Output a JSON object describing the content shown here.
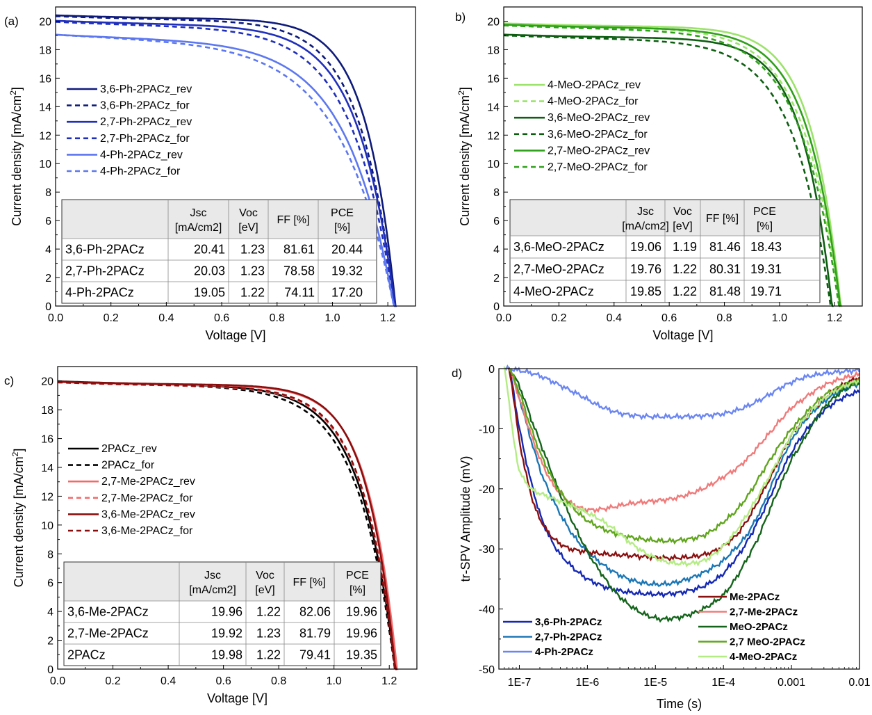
{
  "chart_data": [
    {
      "panel": "(a)",
      "type": "line",
      "xlabel": "Voltage [V]",
      "ylabel": "Current density [mA/cm²]",
      "xlim": [
        0,
        1.3
      ],
      "ylim": [
        0,
        21
      ],
      "xticks": [
        "0.0",
        "0.2",
        "0.4",
        "0.6",
        "0.8",
        "1.0",
        "1.2"
      ],
      "yticks": [
        "0",
        "2",
        "4",
        "6",
        "8",
        "10",
        "12",
        "14",
        "16",
        "18",
        "20"
      ],
      "legend_position": "middle-left",
      "series": [
        {
          "name": "3,6-Ph-2PACz_rev",
          "color": "#0d1a7a",
          "dash": false,
          "jsc": 20.41,
          "voc": 1.228,
          "ff": 81.61
        },
        {
          "name": "3,6-Ph-2PACz_for",
          "color": "#0d1a7a",
          "dash": true,
          "jsc": 20.35,
          "voc": 1.225,
          "ff": 79.5
        },
        {
          "name": "2,7-Ph-2PACz_rev",
          "color": "#1f2fbb",
          "dash": false,
          "jsc": 20.03,
          "voc": 1.226,
          "ff": 78.58
        },
        {
          "name": "2,7-Ph-2PACz_for",
          "color": "#1f2fbb",
          "dash": true,
          "jsc": 19.95,
          "voc": 1.224,
          "ff": 76.5
        },
        {
          "name": "4-Ph-2PACz_rev",
          "color": "#5c77f0",
          "dash": false,
          "jsc": 19.05,
          "voc": 1.222,
          "ff": 74.11
        },
        {
          "name": "4-Ph-2PACz_for",
          "color": "#5c77f0",
          "dash": true,
          "jsc": 19.05,
          "voc": 1.222,
          "ff": 71.5
        }
      ],
      "table": {
        "headers": [
          "",
          "Jsc\n[mA/cm2]",
          "Voc\n[eV]",
          "FF [%]",
          "PCE\n[%]"
        ],
        "rows": [
          [
            "3,6-Ph-2PACz",
            "20.41",
            "1.23",
            "81.61",
            "20.44"
          ],
          [
            "2,7-Ph-2PACz",
            "20.03",
            "1.23",
            "78.58",
            "19.32"
          ],
          [
            "4-Ph-2PACz",
            "19.05",
            "1.22",
            "74.11",
            "17.20"
          ]
        ]
      }
    },
    {
      "panel": "b)",
      "type": "line",
      "xlabel": "Voltage [V]",
      "ylabel": "Current density [mA/cm²]",
      "xlim": [
        0,
        1.3
      ],
      "ylim": [
        0,
        21
      ],
      "xticks": [
        "0.0",
        "0.2",
        "0.4",
        "0.6",
        "0.8",
        "1.0",
        "1.2"
      ],
      "yticks": [
        "0",
        "2",
        "4",
        "6",
        "8",
        "10",
        "12",
        "14",
        "16",
        "18",
        "20"
      ],
      "legend_position": "middle-left",
      "series": [
        {
          "name": "4-MeO-2PACz_rev",
          "color": "#9be36a",
          "dash": false,
          "jsc": 19.85,
          "voc": 1.222,
          "ff": 81.48
        },
        {
          "name": "4-MeO-2PACz_for",
          "color": "#9be36a",
          "dash": true,
          "jsc": 19.8,
          "voc": 1.218,
          "ff": 79.0
        },
        {
          "name": "3,6-MeO-2PACz_rev",
          "color": "#0e5e12",
          "dash": false,
          "jsc": 19.06,
          "voc": 1.19,
          "ff": 81.46
        },
        {
          "name": "3,6-MeO-2PACz_for",
          "color": "#0e5e12",
          "dash": true,
          "jsc": 19.0,
          "voc": 1.185,
          "ff": 78.5
        },
        {
          "name": "2,7-MeO-2PACz_rev",
          "color": "#2fa01a",
          "dash": false,
          "jsc": 19.76,
          "voc": 1.22,
          "ff": 80.31
        },
        {
          "name": "2,7-MeO-2PACz_for",
          "color": "#2fa01a",
          "dash": true,
          "jsc": 19.7,
          "voc": 1.215,
          "ff": 78.0
        }
      ],
      "table": {
        "headers": [
          "",
          "Jsc\n[mA/cm2]",
          "Voc\n[eV]",
          "FF [%]",
          "PCE\n[%]"
        ],
        "rows": [
          [
            "3,6-MeO-2PACz",
            "19.06",
            "1.19",
            "81.46",
            "18.43"
          ],
          [
            "2,7-MeO-2PACz",
            "19.76",
            "1.22",
            "80.31",
            "19.31"
          ],
          [
            "4-MeO-2PACz",
            "19.85",
            "1.22",
            "81.48",
            "19.71"
          ]
        ]
      }
    },
    {
      "panel": "c)",
      "type": "line",
      "xlabel": "Voltage [V]",
      "ylabel": "Current density [mA/cm²]",
      "xlim": [
        0,
        1.3
      ],
      "ylim": [
        0,
        21
      ],
      "xticks": [
        "0.0",
        "0.2",
        "0.4",
        "0.6",
        "0.8",
        "1.0",
        "1.2"
      ],
      "yticks": [
        "0",
        "2",
        "4",
        "6",
        "8",
        "10",
        "12",
        "14",
        "16",
        "18",
        "20"
      ],
      "legend_position": "middle-left",
      "series": [
        {
          "name": "2PACz_rev",
          "color": "#000000",
          "dash": false,
          "jsc": 19.98,
          "voc": 1.222,
          "ff": 79.41
        },
        {
          "name": "2PACz_for",
          "color": "#000000",
          "dash": true,
          "jsc": 19.95,
          "voc": 1.22,
          "ff": 78.5
        },
        {
          "name": "2,7-Me-2PACz_rev",
          "color": "#f26b6b",
          "dash": false,
          "jsc": 19.92,
          "voc": 1.228,
          "ff": 81.79
        },
        {
          "name": "2,7-Me-2PACz_for",
          "color": "#f26b6b",
          "dash": true,
          "jsc": 19.9,
          "voc": 1.225,
          "ff": 80.0
        },
        {
          "name": "3,6-Me-2PACz_rev",
          "color": "#8b0d0d",
          "dash": false,
          "jsc": 19.96,
          "voc": 1.222,
          "ff": 82.06
        },
        {
          "name": "3,6-Me-2PACz_for",
          "color": "#8b0d0d",
          "dash": true,
          "jsc": 19.9,
          "voc": 1.22,
          "ff": 80.5
        }
      ],
      "table": {
        "headers": [
          "",
          "Jsc\n[mA/cm2]",
          "Voc\n[eV]",
          "FF [%]",
          "PCE\n[%]"
        ],
        "rows": [
          [
            "3,6-Me-2PACz",
            "19.96",
            "1.22",
            "82.06",
            "19.96"
          ],
          [
            "2,7-Me-2PACz",
            "19.92",
            "1.23",
            "81.79",
            "19.96"
          ],
          [
            "2PACz",
            "19.98",
            "1.22",
            "79.41",
            "19.35"
          ]
        ]
      }
    },
    {
      "panel": "d)",
      "type": "line",
      "xscale": "log",
      "xlabel": "Time (s)",
      "ylabel": "tr-SPV Amplitude (mV)",
      "xlim": [
        5e-08,
        0.01
      ],
      "ylim": [
        -50,
        0
      ],
      "xticks": [
        {
          "v": 1e-07,
          "label": "1E-7"
        },
        {
          "v": 1e-06,
          "label": "1E-6"
        },
        {
          "v": 1e-05,
          "label": "1E-5"
        },
        {
          "v": 0.0001,
          "label": "1E-4"
        },
        {
          "v": 0.001,
          "label": "0.001"
        },
        {
          "v": 0.01,
          "label": "0.01"
        }
      ],
      "yticks": [
        0,
        -10,
        -20,
        -30,
        -40,
        -50
      ],
      "legend_position": "bottom-left and bottom-right",
      "series": [
        {
          "name": "3,6-Ph-2PACz",
          "color": "#1428b4",
          "x": [
            7e-08,
            1e-07,
            1.5e-07,
            2.2e-07,
            3.5e-07,
            6e-07,
            1e-06,
            2e-06,
            4e-06,
            8e-06,
            1.5e-05,
            3e-05,
            6e-05,
            0.00012,
            0.0003,
            0.001,
            0.003,
            0.01
          ],
          "y": [
            0,
            -10,
            -19,
            -25.5,
            -30,
            -33,
            -35,
            -36.5,
            -37.2,
            -37.5,
            -37.5,
            -37,
            -35.8,
            -33,
            -26,
            -14,
            -7,
            -3.8
          ]
        },
        {
          "name": "2,7-Ph-2PACz",
          "color": "#1b77b5",
          "x": [
            7e-08,
            1e-07,
            1.5e-07,
            2.2e-07,
            3.5e-07,
            6e-07,
            1e-06,
            2e-06,
            4e-06,
            8e-06,
            1.5e-05,
            3e-05,
            6e-05,
            0.00012,
            0.0003,
            0.001,
            0.003,
            0.01
          ],
          "y": [
            0,
            -5,
            -12,
            -18,
            -23,
            -27.5,
            -30.5,
            -33.2,
            -35,
            -35.8,
            -35.8,
            -35,
            -33.5,
            -31,
            -25,
            -12,
            -5.5,
            -2.5
          ]
        },
        {
          "name": "4-Ph-2PACz",
          "color": "#6b86f2",
          "x": [
            6e-08,
            1e-07,
            2e-07,
            4e-07,
            8e-07,
            1.5e-06,
            3e-06,
            6e-06,
            1.5e-05,
            4e-05,
            0.0001,
            0.0002,
            0.0004,
            0.0008,
            0.0015,
            0.003,
            0.01
          ],
          "y": [
            0,
            -0.3,
            -1.2,
            -2.8,
            -4.5,
            -6.2,
            -7.4,
            -7.9,
            -8,
            -7.9,
            -7.5,
            -6.5,
            -4.8,
            -2.8,
            -1.5,
            -0.8,
            -0.3
          ]
        },
        {
          "name": "Me-2PACz",
          "color": "#8b1010",
          "x": [
            7e-08,
            1e-07,
            1.5e-07,
            2e-07,
            3e-07,
            5e-07,
            1e-06,
            2e-06,
            4e-06,
            1e-05,
            2e-05,
            5e-05,
            0.0001,
            0.0002,
            0.0005,
            0.001,
            0.003,
            0.01
          ],
          "y": [
            0,
            -12,
            -21,
            -25,
            -28,
            -29.8,
            -30.5,
            -30.9,
            -31.1,
            -31.4,
            -31.5,
            -31,
            -29.5,
            -26,
            -18,
            -11,
            -5,
            -1.5
          ]
        },
        {
          "name": "2,7-Me-2PACz",
          "color": "#f07a7a",
          "x": [
            7e-08,
            1e-07,
            1.5e-07,
            2e-07,
            3e-07,
            5e-07,
            8e-07,
            1.2e-06,
            2e-06,
            4e-06,
            1e-05,
            2e-05,
            5e-05,
            0.0001,
            0.0002,
            0.0005,
            0.001,
            0.003,
            0.01
          ],
          "y": [
            0,
            -5,
            -11,
            -15,
            -19,
            -21.8,
            -23.2,
            -23.5,
            -23.2,
            -22.5,
            -22,
            -21.5,
            -20,
            -18,
            -15.5,
            -10.5,
            -6.5,
            -2.8,
            -1
          ]
        },
        {
          "name": "MeO-2PACz",
          "color": "#13641a",
          "x": [
            7e-08,
            1e-07,
            1.5e-07,
            2.5e-07,
            4e-07,
            7e-07,
            1.2e-06,
            2.5e-06,
            5e-06,
            1e-05,
            1.6e-05,
            3e-05,
            6e-05,
            0.00012,
            0.0003,
            0.0006,
            0.001,
            0.003,
            0.01
          ],
          "y": [
            0,
            -3,
            -8.5,
            -15,
            -21,
            -27,
            -32,
            -37,
            -40,
            -41.5,
            -41.6,
            -41,
            -39.5,
            -36.5,
            -29,
            -21,
            -15,
            -6.5,
            -2.2
          ]
        },
        {
          "name": "2,7 MeO-2PACz",
          "color": "#5fa51c",
          "x": [
            7e-08,
            1e-07,
            1.5e-07,
            2.2e-07,
            3.5e-07,
            6e-07,
            1e-06,
            2e-06,
            4e-06,
            1e-05,
            2e-05,
            5e-05,
            0.0001,
            0.0002,
            0.0005,
            0.001,
            0.003,
            0.01
          ],
          "y": [
            0,
            -4,
            -10,
            -15,
            -19.5,
            -23,
            -25.3,
            -27,
            -28,
            -28.6,
            -28.6,
            -27.8,
            -25.5,
            -22,
            -15,
            -10,
            -4.5,
            -2
          ]
        },
        {
          "name": "4-MeO-2PACz",
          "color": "#b4ec84",
          "x": [
            6e-08,
            7e-08,
            8e-08,
            1e-07,
            1.5e-07,
            2.5e-07,
            5e-07,
            1e-06,
            2e-06,
            5e-06,
            1e-05,
            2e-05,
            5e-05,
            0.0001,
            0.0002,
            0.0005,
            0.001,
            0.003,
            0.01
          ],
          "y": [
            0,
            -5,
            -11,
            -17,
            -20,
            -21.2,
            -22.5,
            -24,
            -26,
            -29.5,
            -31.5,
            -32.4,
            -32,
            -29.5,
            -25,
            -17.5,
            -11,
            -5,
            -2
          ]
        }
      ],
      "legend_left": [
        "3,6-Ph-2PACz",
        "2,7-Ph-2PACz",
        "4-Ph-2PACz"
      ],
      "legend_right": [
        "Me-2PACz",
        "2,7-Me-2PACz",
        "MeO-2PACz",
        "2,7 MeO-2PACz",
        "4-MeO-2PACz"
      ]
    }
  ]
}
